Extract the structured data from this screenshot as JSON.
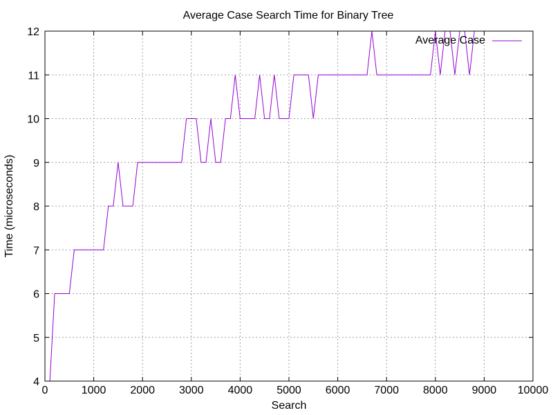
{
  "chart_data": {
    "type": "line",
    "title": "Average Case Search Time for Binary Tree",
    "xlabel": "Search",
    "ylabel": "Time (microseconds)",
    "xlim": [
      0,
      10000
    ],
    "ylim": [
      4,
      12
    ],
    "xticks": [
      0,
      1000,
      2000,
      3000,
      4000,
      5000,
      6000,
      7000,
      8000,
      9000,
      10000
    ],
    "yticks": [
      4,
      5,
      6,
      7,
      8,
      9,
      10,
      11,
      12
    ],
    "grid": true,
    "legend_position": "top-right",
    "series": [
      {
        "name": "Average Case",
        "color": "#9400d3",
        "x": [
          100,
          200,
          300,
          400,
          500,
          600,
          700,
          800,
          900,
          1000,
          1100,
          1200,
          1300,
          1400,
          1500,
          1600,
          1700,
          1800,
          1900,
          2000,
          2100,
          2200,
          2300,
          2400,
          2500,
          2600,
          2700,
          2800,
          2900,
          3000,
          3100,
          3200,
          3300,
          3400,
          3500,
          3600,
          3700,
          3800,
          3900,
          4000,
          4100,
          4200,
          4300,
          4400,
          4500,
          4600,
          4700,
          4800,
          4900,
          5000,
          5100,
          5200,
          5300,
          5400,
          5500,
          5600,
          5700,
          5800,
          5900,
          6000,
          6100,
          6200,
          6300,
          6400,
          6500,
          6600,
          6700,
          6800,
          6900,
          7000,
          7100,
          7200,
          7300,
          7400,
          7500,
          7600,
          7700,
          7800,
          7900,
          8000,
          8100,
          8200,
          8300,
          8400,
          8500,
          8600,
          8700,
          8800
        ],
        "y": [
          4,
          6,
          6,
          6,
          6,
          7,
          7,
          7,
          7,
          7,
          7,
          7,
          8,
          8,
          9,
          8,
          8,
          8,
          9,
          9,
          9,
          9,
          9,
          9,
          9,
          9,
          9,
          9,
          10,
          10,
          10,
          9,
          9,
          10,
          9,
          9,
          10,
          10,
          11,
          10,
          10,
          10,
          10,
          11,
          10,
          10,
          11,
          10,
          10,
          10,
          11,
          11,
          11,
          11,
          10,
          11,
          11,
          11,
          11,
          11,
          11,
          11,
          11,
          11,
          11,
          11,
          12,
          11,
          11,
          11,
          11,
          11,
          11,
          11,
          11,
          11,
          11,
          11,
          11,
          12,
          11,
          12,
          12,
          11,
          12,
          12,
          11,
          12
        ]
      }
    ]
  }
}
